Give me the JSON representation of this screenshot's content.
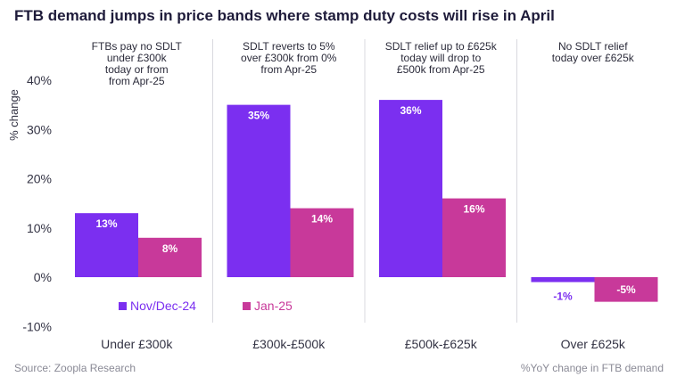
{
  "title": "FTB demand jumps in price bands where stamp duty costs will rise in April",
  "source": "Source: Zoopla Research",
  "footnote": "%YoY change in FTB demand",
  "colors": {
    "series1": "#7b2ff0",
    "series2": "#c8399a",
    "divider": "#d9d9df",
    "axis_text": "#333344"
  },
  "chart_data": {
    "type": "bar",
    "title": "FTB demand jumps in price bands where stamp duty costs will rise in April",
    "ylabel": "% change",
    "xlabel": "",
    "ylim": [
      -10,
      40
    ],
    "yticks": [
      -10,
      0,
      10,
      20,
      30,
      40
    ],
    "ytick_labels": [
      "-10%",
      "0%",
      "10%",
      "20%",
      "30%",
      "40%"
    ],
    "categories": [
      "Under £300k",
      "£300k-£500k",
      "£500k-£625k",
      "Over £625k"
    ],
    "series": [
      {
        "name": "Nov/Dec-24",
        "values": [
          13,
          35,
          36,
          -1
        ],
        "labels": [
          "13%",
          "35%",
          "36%",
          "-1%"
        ]
      },
      {
        "name": "Jan-25",
        "values": [
          8,
          14,
          16,
          -5
        ],
        "labels": [
          "8%",
          "14%",
          "16%",
          "-5%"
        ]
      }
    ],
    "annotations": [
      [
        "FTBs pay no SDLT",
        "under £300k",
        "today or from",
        "from Apr-25"
      ],
      [
        "SDLT reverts to 5%",
        "over £300k from 0%",
        "from Apr-25"
      ],
      [
        "SDLT relief up to £625k",
        "today will drop to",
        "£500k from Apr-25"
      ],
      [
        "No SDLT relief",
        "today over £625k"
      ]
    ],
    "legend_position": "bottom-left",
    "grid": false
  }
}
